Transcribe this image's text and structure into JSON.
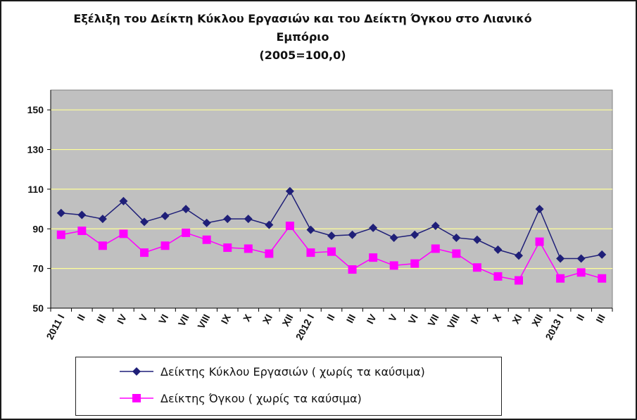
{
  "chart_data": {
    "type": "line",
    "title_lines": [
      "Εξέλιξη του Δείκτη Κύκλου Εργασιών και του Δείκτη Όγκου στο Λιανικό",
      "Εμπόριο",
      "(2005=100,0)"
    ],
    "categories": [
      "2011 I",
      "II",
      "III",
      "IV",
      "V",
      "VI",
      "VII",
      "VIII",
      "IX",
      "X",
      "XI",
      "XII",
      "2012 I",
      "II",
      "III",
      "IV",
      "V",
      "VI",
      "VII",
      "VIII",
      "IX",
      "X",
      "XI",
      "XII",
      "2013 I",
      "II",
      "III"
    ],
    "series": [
      {
        "name": "Δείκτης Κύκλου Εργασιών ( χωρίς  τα καύσιμα)",
        "color": "#1f1f78",
        "marker": "diamond",
        "values": [
          98,
          97,
          95,
          104,
          93.5,
          96.5,
          100,
          93,
          95,
          95,
          92,
          109,
          89.5,
          86.5,
          87,
          90.5,
          85.5,
          87,
          91.5,
          85.5,
          84.5,
          79.5,
          76.5,
          100,
          75,
          75,
          77
        ]
      },
      {
        "name": "Δείκτης Όγκου ( χωρίς  τα καύσιμα)",
        "color": "#ff00ff",
        "marker": "square",
        "values": [
          87,
          89,
          81.5,
          87.5,
          78,
          81.5,
          88,
          84.5,
          80.5,
          80,
          77.5,
          91.5,
          78,
          78.5,
          69.5,
          75.5,
          71.5,
          72.5,
          80,
          77.5,
          70.5,
          66,
          64,
          83.5,
          65,
          68,
          65
        ]
      }
    ],
    "yticks": [
      "50",
      "70",
      "90",
      "110",
      "130",
      "150"
    ],
    "ylim": [
      50,
      160
    ],
    "grid": true,
    "grid_color": "#ffff99",
    "plot_background": "#c0c0c0",
    "legend_position": "bottom"
  }
}
